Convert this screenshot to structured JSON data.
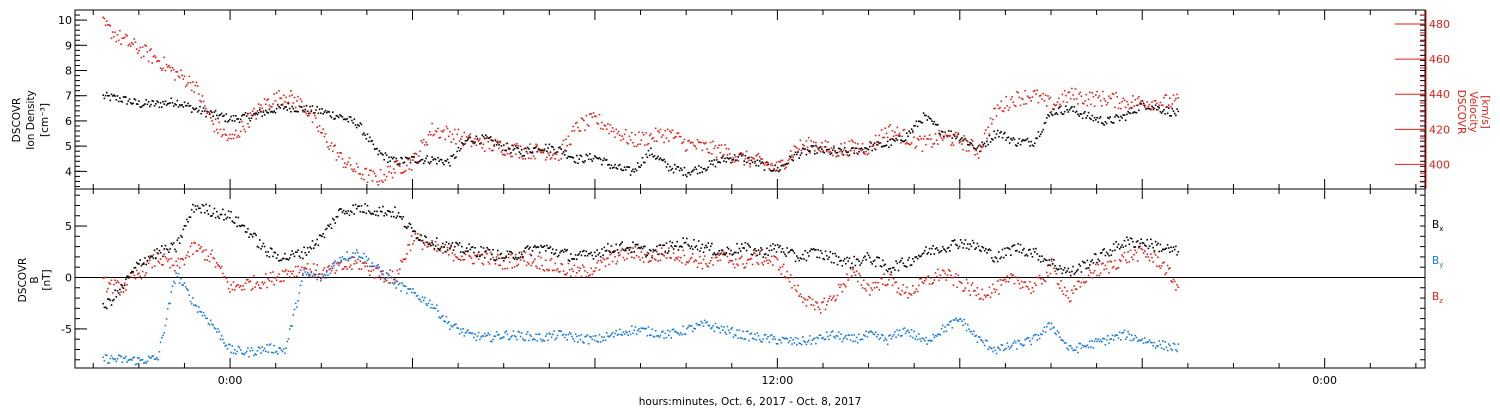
{
  "chart_data": [
    {
      "type": "scatter",
      "panel": "top",
      "ylabel": [
        "DSCOVR",
        "Ion Density",
        "[cm⁻³]"
      ],
      "ylabel_right": [
        "DSCOVR",
        "Velocity",
        "[km/s]"
      ],
      "ylim": [
        3.3,
        10.4
      ],
      "ylim_right": [
        386,
        488
      ],
      "yticks": [
        4,
        5,
        6,
        7,
        8,
        9,
        10
      ],
      "yticks_right": [
        400,
        420,
        440,
        460,
        480
      ],
      "colors": {
        "density": "#000000",
        "velocity": "#e0201a"
      },
      "x_hours": [
        -2.8,
        -2.4,
        -2.0,
        -1.6,
        -1.2,
        -0.8,
        -0.4,
        0.0,
        0.4,
        0.8,
        1.2,
        1.6,
        2.0,
        2.4,
        2.8,
        3.2,
        3.6,
        4.0,
        4.4,
        4.8,
        5.2,
        5.6,
        6.0,
        6.4,
        6.8,
        7.2,
        7.6,
        8.0,
        8.4,
        8.8,
        9.2,
        9.6,
        10.0,
        10.4,
        10.8,
        11.2,
        11.6,
        12.0,
        12.4,
        12.8,
        13.2,
        13.6,
        14.0,
        14.4,
        14.8,
        15.2,
        15.6,
        16.0,
        16.4,
        16.8,
        17.2,
        17.6,
        18.0,
        18.4,
        18.8,
        19.2,
        19.6,
        20.0,
        20.4,
        20.8
      ],
      "series": [
        {
          "name": "density",
          "values": [
            7.0,
            6.9,
            6.7,
            6.7,
            6.8,
            6.5,
            6.3,
            6.1,
            6.2,
            6.4,
            6.6,
            6.5,
            6.4,
            6.2,
            5.9,
            4.8,
            4.4,
            4.5,
            4.5,
            4.4,
            5.3,
            5.3,
            5.0,
            4.8,
            5.0,
            4.9,
            4.5,
            4.6,
            4.2,
            4.0,
            4.8,
            4.2,
            4.0,
            4.2,
            4.5,
            4.6,
            4.3,
            4.1,
            4.7,
            4.9,
            4.8,
            4.8,
            5.0,
            5.1,
            5.4,
            6.2,
            5.6,
            5.4,
            4.9,
            5.6,
            5.2,
            5.2,
            6.4,
            6.5,
            6.2,
            6.0,
            6.2,
            6.7,
            6.5,
            6.3
          ]
        },
        {
          "name": "velocity",
          "values": [
            480,
            472,
            466,
            460,
            452,
            446,
            424,
            414,
            426,
            436,
            440,
            434,
            418,
            404,
            396,
            392,
            398,
            402,
            420,
            418,
            414,
            412,
            410,
            408,
            408,
            406,
            422,
            426,
            420,
            414,
            416,
            418,
            412,
            410,
            408,
            404,
            402,
            398,
            410,
            412,
            408,
            410,
            410,
            420,
            416,
            412,
            416,
            414,
            408,
            432,
            438,
            440,
            434,
            440,
            438,
            438,
            436,
            436,
            436,
            436
          ]
        }
      ]
    },
    {
      "type": "scatter",
      "panel": "bottom",
      "ylabel": [
        "DSCOVR",
        "B",
        "[nT]"
      ],
      "ylim": [
        -8.8,
        8.6
      ],
      "yticks": [
        -5,
        0,
        5
      ],
      "legend": [
        "Bx",
        "By",
        "Bz"
      ],
      "colors": {
        "Bx": "#000000",
        "By": "#1a7adc",
        "Bz": "#e0201a"
      },
      "x_hours": [
        -2.8,
        -2.4,
        -2.0,
        -1.6,
        -1.2,
        -0.8,
        -0.4,
        0.0,
        0.4,
        0.8,
        1.2,
        1.6,
        2.0,
        2.4,
        2.8,
        3.2,
        3.6,
        4.0,
        4.4,
        4.8,
        5.2,
        5.6,
        6.0,
        6.4,
        6.8,
        7.2,
        7.6,
        8.0,
        8.4,
        8.8,
        9.2,
        9.6,
        10.0,
        10.4,
        10.8,
        11.2,
        11.6,
        12.0,
        12.4,
        12.8,
        13.2,
        13.6,
        14.0,
        14.4,
        14.8,
        15.2,
        15.6,
        16.0,
        16.4,
        16.8,
        17.2,
        17.6,
        18.0,
        18.4,
        18.8,
        19.2,
        19.6,
        20.0,
        20.4,
        20.8
      ],
      "series": [
        {
          "name": "Bx",
          "values": [
            -3.0,
            -1.0,
            1.5,
            2.5,
            3.0,
            7.0,
            6.5,
            6.0,
            4.5,
            2.5,
            2.0,
            2.5,
            4.0,
            6.5,
            6.8,
            6.6,
            6.4,
            4.5,
            3.5,
            3.0,
            2.8,
            2.5,
            2.0,
            2.5,
            3.0,
            2.5,
            2.0,
            2.5,
            3.0,
            3.0,
            2.5,
            3.0,
            3.5,
            3.0,
            2.5,
            3.0,
            2.5,
            3.0,
            2.0,
            2.5,
            2.0,
            1.5,
            2.0,
            1.0,
            1.5,
            2.5,
            3.0,
            3.5,
            3.0,
            2.0,
            3.0,
            2.5,
            1.5,
            0.5,
            1.5,
            2.5,
            3.5,
            3.5,
            3.0,
            2.5
          ]
        },
        {
          "name": "By",
          "values": [
            -7.8,
            -7.9,
            -8.0,
            -7.8,
            0.5,
            -2.5,
            -4.5,
            -7.0,
            -7.2,
            -6.8,
            -7.0,
            0.5,
            0.0,
            2.0,
            2.5,
            1.0,
            -0.5,
            -1.5,
            -2.5,
            -4.5,
            -5.5,
            -5.8,
            -5.5,
            -5.6,
            -5.8,
            -5.5,
            -5.8,
            -6.0,
            -5.5,
            -5.0,
            -5.2,
            -5.5,
            -5.0,
            -4.5,
            -5.0,
            -5.5,
            -5.8,
            -6.0,
            -6.2,
            -6.0,
            -5.5,
            -6.0,
            -5.5,
            -6.0,
            -5.0,
            -6.2,
            -5.0,
            -4.0,
            -6.0,
            -7.0,
            -6.5,
            -6.0,
            -4.5,
            -7.0,
            -6.5,
            -6.0,
            -5.5,
            -6.0,
            -6.5,
            -6.8
          ]
        },
        {
          "name": "Bz",
          "values": [
            -0.5,
            -1.0,
            0.5,
            2.0,
            1.0,
            3.0,
            2.0,
            -1.0,
            -0.5,
            -0.2,
            0.5,
            1.0,
            0.5,
            1.0,
            1.5,
            0.5,
            0.0,
            4.0,
            3.0,
            2.5,
            2.0,
            2.0,
            1.5,
            2.0,
            1.5,
            1.0,
            0.5,
            1.0,
            2.0,
            2.5,
            2.0,
            2.5,
            2.0,
            1.5,
            2.0,
            1.5,
            2.0,
            1.5,
            -1.0,
            -3.0,
            -2.0,
            0.5,
            -1.0,
            0.0,
            -1.5,
            -0.5,
            0.5,
            -0.5,
            -1.5,
            -1.0,
            0.0,
            -1.0,
            1.0,
            -2.0,
            0.5,
            1.0,
            2.0,
            2.5,
            1.5,
            -1.0
          ]
        }
      ]
    }
  ],
  "xaxis": {
    "tick_labels": [
      {
        "hour": 0,
        "label": "0:00"
      },
      {
        "hour": 12,
        "label": "12:00"
      },
      {
        "hour": 24,
        "label": "0:00"
      }
    ],
    "xlabel": "hours:minutes, Oct.  6, 2017 - Oct.  8, 2017",
    "xlim": [
      -3.4,
      26.2
    ]
  },
  "legend_labels": {
    "Bx": "B",
    "Bx_sub": "x",
    "By": "B",
    "By_sub": "y",
    "Bz": "B",
    "Bz_sub": "z"
  }
}
